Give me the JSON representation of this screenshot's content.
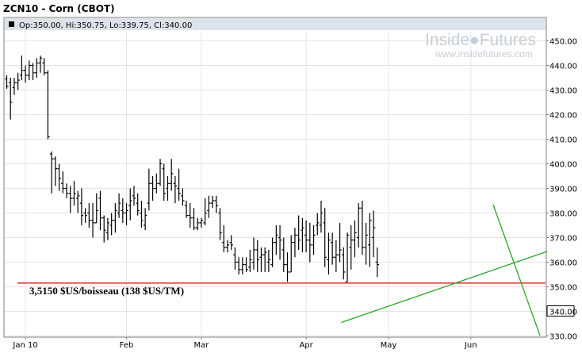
{
  "chart_data": {
    "type": "ohlc",
    "title": "ZCN10 - Corn (CBOT)",
    "info": "Op:350.00, Hi:350.75, Lo:339.75, Cl:340.00",
    "watermark": {
      "brand": "Inside●Futures",
      "url": "www.insidefutures.com"
    },
    "y_ticks": [
      330,
      340,
      350,
      360,
      370,
      380,
      390,
      400,
      410,
      420,
      430,
      440,
      450
    ],
    "y_tick_labels": [
      "330.00",
      "340.00",
      "350.00",
      "360.00",
      "370.00",
      "380.00",
      "390.00",
      "400.00",
      "410.00",
      "420.00",
      "430.00",
      "440.00",
      "450.00"
    ],
    "ylim": [
      330,
      455
    ],
    "last_price": 340.0,
    "last_price_label": "340.00",
    "x_labels": [
      {
        "label": "Jan 10",
        "bar": 5
      },
      {
        "label": "Feb",
        "bar": 32
      },
      {
        "label": "Mar",
        "bar": 52
      },
      {
        "label": "Apr",
        "bar": 80
      },
      {
        "label": "May",
        "bar": 102
      },
      {
        "label": "Jun",
        "bar": 124
      }
    ],
    "grid": true,
    "bars": [
      [
        434.5,
        436,
        430.5,
        431.5
      ],
      [
        433,
        435,
        418,
        425
      ],
      [
        431,
        435,
        428,
        433
      ],
      [
        433,
        437,
        430,
        434
      ],
      [
        436,
        444,
        434,
        438
      ],
      [
        438,
        440,
        433,
        436
      ],
      [
        436,
        442,
        434,
        440
      ],
      [
        440,
        441,
        434,
        437
      ],
      [
        437,
        443,
        435,
        441
      ],
      [
        441,
        444,
        437,
        443
      ],
      [
        441,
        443,
        436,
        437
      ],
      [
        437,
        438,
        410,
        411
      ],
      [
        404,
        405,
        388,
        402
      ],
      [
        402,
        403,
        391,
        398
      ],
      [
        398,
        400,
        389,
        394
      ],
      [
        392,
        397,
        388,
        390
      ],
      [
        390,
        392,
        386,
        388
      ],
      [
        388,
        391,
        380,
        386
      ],
      [
        386,
        393,
        383,
        388
      ],
      [
        386,
        389,
        380,
        387
      ],
      [
        384,
        390,
        375,
        379
      ],
      [
        380,
        382,
        376,
        379
      ],
      [
        380,
        384,
        374,
        377
      ],
      [
        377,
        384,
        370,
        376
      ],
      [
        376,
        388,
        376,
        381
      ],
      [
        386,
        389,
        373,
        378
      ],
      [
        378,
        379,
        368,
        373
      ],
      [
        372,
        378,
        369,
        376
      ],
      [
        375,
        380,
        371,
        377
      ],
      [
        377,
        384,
        372,
        381
      ],
      [
        380,
        388,
        378,
        384
      ],
      [
        381,
        386,
        376,
        380
      ],
      [
        380,
        384,
        375,
        381
      ],
      [
        383,
        390,
        377,
        385
      ],
      [
        387,
        391,
        383,
        386
      ],
      [
        384,
        388,
        379,
        381
      ],
      [
        380,
        385,
        374,
        377
      ],
      [
        375,
        382,
        373,
        379
      ],
      [
        384,
        398,
        381,
        392
      ],
      [
        392,
        395,
        385,
        390
      ],
      [
        390,
        396,
        388,
        392
      ],
      [
        392,
        402,
        391,
        400
      ],
      [
        398,
        400,
        385,
        388
      ],
      [
        390,
        395,
        385,
        392
      ],
      [
        392,
        402,
        389,
        396
      ],
      [
        392,
        395,
        384,
        391
      ],
      [
        390,
        398,
        385,
        388
      ],
      [
        387,
        390,
        383,
        385
      ],
      [
        383,
        385,
        378,
        379
      ],
      [
        379,
        384,
        374,
        378
      ],
      [
        378,
        382,
        373,
        374
      ],
      [
        374,
        378,
        373,
        376
      ],
      [
        376,
        378,
        374,
        377
      ],
      [
        376,
        386,
        375,
        380
      ],
      [
        381,
        387,
        378,
        384
      ],
      [
        384,
        387,
        382,
        385
      ],
      [
        385,
        387,
        380,
        383
      ],
      [
        380,
        382,
        369,
        372
      ],
      [
        368,
        375,
        364,
        366
      ],
      [
        366,
        369,
        364,
        367
      ],
      [
        368,
        371,
        365,
        367
      ],
      [
        363,
        366,
        357,
        360
      ],
      [
        360,
        362,
        355,
        357
      ],
      [
        357,
        362,
        355,
        359
      ],
      [
        359,
        362,
        356,
        357
      ],
      [
        358,
        365,
        356,
        361
      ],
      [
        360,
        370,
        357,
        365
      ],
      [
        365,
        369,
        356,
        361
      ],
      [
        362,
        366,
        356,
        363
      ],
      [
        363,
        366,
        356,
        364
      ],
      [
        360,
        365,
        356,
        361
      ],
      [
        359,
        370,
        358,
        368
      ],
      [
        368,
        375,
        363,
        371
      ],
      [
        370,
        375,
        361,
        369
      ],
      [
        365,
        370,
        356,
        359
      ],
      [
        359,
        364,
        352,
        356
      ],
      [
        356,
        371,
        356,
        368
      ],
      [
        368,
        374,
        362,
        371
      ],
      [
        371,
        379,
        365,
        369
      ],
      [
        373,
        378,
        364,
        374
      ],
      [
        371,
        377,
        364,
        369
      ],
      [
        369,
        376,
        360,
        367
      ],
      [
        367,
        375,
        363,
        371
      ],
      [
        375,
        380,
        371,
        376
      ],
      [
        375,
        385,
        372,
        380
      ],
      [
        376,
        382,
        358,
        362
      ],
      [
        361,
        372,
        355,
        369
      ],
      [
        368,
        372,
        359,
        362
      ],
      [
        362,
        369,
        356,
        363
      ],
      [
        363,
        376,
        360,
        365
      ],
      [
        363,
        366,
        353,
        356
      ],
      [
        352,
        372,
        352,
        371
      ],
      [
        366,
        375,
        357,
        369
      ],
      [
        369,
        377,
        362,
        372
      ],
      [
        370,
        384,
        366,
        382
      ],
      [
        382,
        385,
        363,
        366
      ],
      [
        366,
        376,
        359,
        371
      ],
      [
        367,
        380,
        358,
        377
      ],
      [
        370,
        381,
        362,
        374
      ],
      [
        360,
        366,
        354,
        359
      ]
    ],
    "trendlines": [
      {
        "color": "#2aa52a",
        "points": [
          [
            430.5,
            406.5
          ],
          [
            690,
            317
          ]
        ]
      },
      {
        "color": "#2aa52a",
        "points": [
          [
            622,
            258
          ],
          [
            681,
            423
          ]
        ]
      }
    ],
    "hline": {
      "color": "#e00000",
      "value": 351.5
    },
    "annotation": "3,5150 $US/boisseau (138 $US/TM)"
  }
}
